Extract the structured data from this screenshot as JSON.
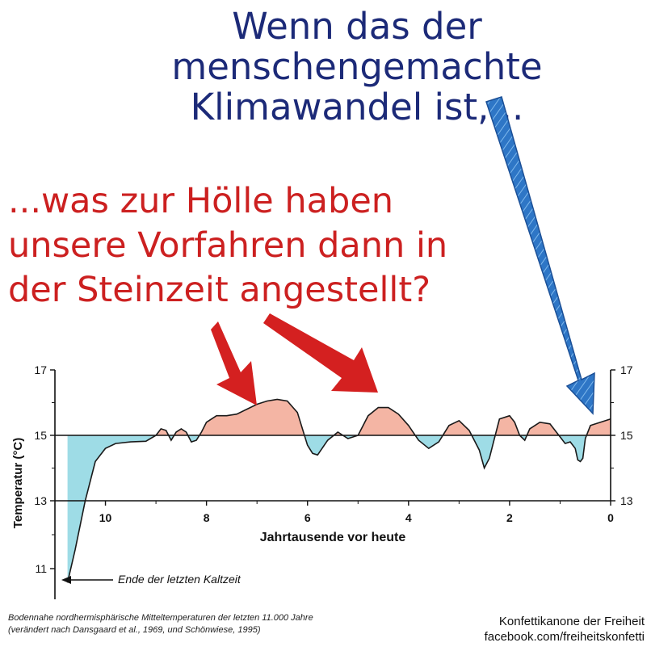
{
  "headline_top": [
    "Wenn das der",
    "menschengemachte",
    "Klimawandel ist,..."
  ],
  "headline_bottom": [
    "...was zur Hölle haben",
    "unsere Vorfahren dann in",
    "der Steinzeit angestellt?"
  ],
  "caption": [
    "Bodennahe nordhermisphärische Mitteltemperaturen der letzten 11.000 Jahre",
    "(verändert nach Dansgaard et al., 1969, und Schönwiese, 1995)"
  ],
  "credit": [
    "Konfettikanone der Freiheit",
    "facebook.com/freiheitskonfetti"
  ],
  "colors": {
    "blue_text": "#1c2a78",
    "red_text": "#cc2020",
    "warm_fill": "#f4b5a4",
    "cold_fill": "#9edce6",
    "arrow_red": "#d42020",
    "arrow_blue": "#2e76c6"
  },
  "chart_data": {
    "type": "area",
    "xlabel": "Jahrtausende vor heute",
    "ylabel": "Temperatur (°C)",
    "xlim": [
      11,
      0
    ],
    "ylim_left": [
      11,
      17
    ],
    "ylim_right": [
      13,
      17
    ],
    "baseline": 15,
    "x_ticks": [
      10,
      8,
      6,
      4,
      2,
      0
    ],
    "y_ticks_left": [
      17,
      15,
      13,
      11
    ],
    "y_ticks_right": [
      17,
      15,
      13
    ],
    "annotation": "Ende der letzten Kaltzeit",
    "series": [
      {
        "x": [
          10.75,
          10.6,
          10.4,
          10.2,
          10.0,
          9.8,
          9.5,
          9.2,
          9.0,
          8.9,
          8.8,
          8.7,
          8.6,
          8.5,
          8.4,
          8.3,
          8.2,
          8.1,
          8.0,
          7.8,
          7.6,
          7.4,
          7.2,
          7.0,
          6.8,
          6.6,
          6.4,
          6.2,
          6.0,
          5.9,
          5.8,
          5.6,
          5.4,
          5.2,
          5.0,
          4.8,
          4.6,
          4.4,
          4.2,
          4.0,
          3.8,
          3.6,
          3.4,
          3.2,
          3.0,
          2.8,
          2.6,
          2.5,
          2.4,
          2.3,
          2.2,
          2.0,
          1.9,
          1.8,
          1.7,
          1.6,
          1.4,
          1.2,
          1.0,
          0.9,
          0.8,
          0.7,
          0.65,
          0.6,
          0.55,
          0.5,
          0.4,
          0.2,
          0.0
        ],
        "y": [
          10.5,
          11.5,
          13.0,
          14.2,
          14.6,
          14.75,
          14.8,
          14.82,
          15.0,
          15.2,
          15.15,
          14.85,
          15.1,
          15.2,
          15.1,
          14.8,
          14.85,
          15.1,
          15.4,
          15.6,
          15.6,
          15.65,
          15.8,
          15.95,
          16.05,
          16.1,
          16.05,
          15.7,
          14.7,
          14.45,
          14.4,
          14.85,
          15.1,
          14.9,
          15.0,
          15.6,
          15.85,
          15.85,
          15.65,
          15.3,
          14.85,
          14.6,
          14.8,
          15.3,
          15.45,
          15.15,
          14.55,
          14.0,
          14.3,
          14.9,
          15.5,
          15.6,
          15.4,
          15.0,
          14.85,
          15.2,
          15.4,
          15.35,
          14.95,
          14.75,
          14.8,
          14.6,
          14.25,
          14.2,
          14.3,
          14.9,
          15.3,
          15.4,
          15.5
        ]
      }
    ]
  }
}
